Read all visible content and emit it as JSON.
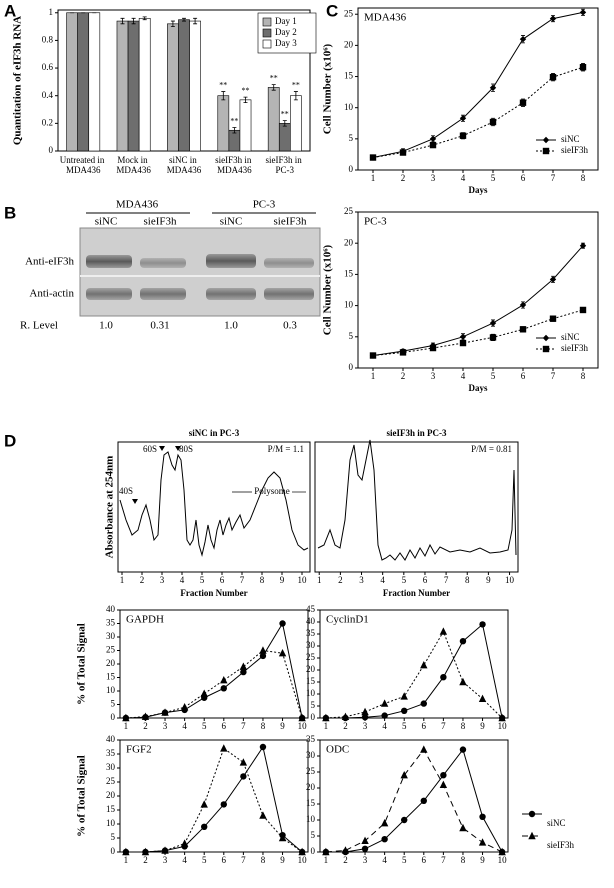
{
  "panels": [
    "A",
    "B",
    "C",
    "D"
  ],
  "blot": {
    "groups": [
      "MDA436",
      "PC-3"
    ],
    "lanes": [
      "siNC",
      "sieIF3h",
      "siNC",
      "sieIF3h"
    ],
    "rows": [
      "Anti-eIF3h",
      "Anti-actin"
    ],
    "level_label": "R. Level",
    "levels": [
      "1.0",
      "0.31",
      "1.0",
      "0.3"
    ]
  },
  "chart_data": [
    {
      "type": "bar",
      "ylabel": "Quantitation of eIF3h RNA",
      "categories": [
        "Untreated in MDA436",
        "Mock in MDA436",
        "siNC in MDA436",
        "sieIF3h in MDA436",
        "sieIF3h in PC-3"
      ],
      "series": [
        {
          "name": "Day 1",
          "color": "#b4b4b4",
          "values": [
            1,
            0.94,
            0.92,
            0.4,
            0.46
          ],
          "errors": [
            0,
            0.02,
            0.02,
            0.03,
            0.02
          ]
        },
        {
          "name": "Day 2",
          "color": "#6e6e6e",
          "values": [
            1,
            0.94,
            0.95,
            0.15,
            0.2
          ],
          "errors": [
            0,
            0.02,
            0.01,
            0.02,
            0.02
          ]
        },
        {
          "name": "Day 3",
          "color": "#ffffff",
          "values": [
            1,
            0.96,
            0.94,
            0.37,
            0.4
          ],
          "errors": [
            0,
            0.01,
            0.02,
            0.02,
            0.03
          ]
        }
      ],
      "annotation": "**",
      "ylim": [
        0,
        1.02
      ],
      "yticks": [
        0,
        0.2,
        0.4,
        0.6,
        0.8,
        1
      ],
      "legend": "upper right"
    },
    {
      "type": "line",
      "title": "MDA436",
      "xlabel": "Days",
      "ylabel": "Cell Number (x10⁶)",
      "x": [
        1,
        2,
        3,
        4,
        5,
        6,
        7,
        8
      ],
      "series": [
        {
          "name": "siNC",
          "color": "#000000",
          "line_style": "solid",
          "marker": "diamond",
          "values": [
            2,
            3,
            5,
            8.3,
            13.2,
            21,
            24.3,
            25.3
          ],
          "errors": [
            0.1,
            0.4,
            0.5,
            0.5,
            0.6,
            0.6,
            0.5,
            0.5
          ]
        },
        {
          "name": "sieIF3h",
          "color": "#000000",
          "line_style": "dotted",
          "marker": "square",
          "values": [
            2,
            2.8,
            4,
            5.5,
            7.7,
            10.8,
            14.9,
            16.5
          ],
          "errors": [
            0.1,
            0.4,
            0.4,
            0.5,
            0.6,
            0.6,
            0.6,
            0.6
          ]
        }
      ],
      "xlim": [
        0.5,
        8.5
      ],
      "xticks": [
        1,
        2,
        3,
        4,
        5,
        6,
        7,
        8
      ],
      "ylim": [
        0,
        26
      ],
      "yticks": [
        0,
        5,
        10,
        15,
        20,
        25
      ],
      "legend": "lower right"
    },
    {
      "type": "line",
      "title": "PC-3",
      "xlabel": "Days",
      "ylabel": "Cell Number (x10⁶)",
      "x": [
        1,
        2,
        3,
        4,
        5,
        6,
        7,
        8
      ],
      "series": [
        {
          "name": "siNC",
          "color": "#000000",
          "line_style": "solid",
          "marker": "diamond",
          "values": [
            2,
            2.7,
            3.6,
            5,
            7.2,
            10.1,
            14.2,
            19.6
          ],
          "errors": [
            0.1,
            0.3,
            0.4,
            0.5,
            0.5,
            0.5,
            0.5,
            0.4
          ]
        },
        {
          "name": "sieIF3h",
          "color": "#000000",
          "line_style": "dotted",
          "marker": "square",
          "values": [
            2,
            2.5,
            3.2,
            4,
            4.9,
            6.2,
            7.9,
            9.3
          ],
          "errors": [
            0.1,
            0.3,
            0.3,
            0.4,
            0.5,
            0.4,
            0.4,
            0.4
          ]
        }
      ],
      "xlim": [
        0.5,
        8.5
      ],
      "xticks": [
        1,
        2,
        3,
        4,
        5,
        6,
        7,
        8
      ],
      "ylim": [
        0,
        25
      ],
      "yticks": [
        0,
        5,
        10,
        15,
        20,
        25
      ],
      "legend": "lower right"
    },
    {
      "type": "profile",
      "title": "siNC in PC-3",
      "xlabel": "Fraction Number",
      "ylabel": "Absorbance at 254nm",
      "annotation": "P/M = 1.1",
      "peaks": [
        "40S",
        "60S",
        "80S"
      ],
      "region": "Polysome",
      "xlim": [
        0.8,
        10.4
      ],
      "xticks": [
        1,
        2,
        3,
        4,
        5,
        6,
        7,
        8,
        9,
        10
      ]
    },
    {
      "type": "profile",
      "title": "sieIF3h in PC-3",
      "xlabel": "Fraction Number",
      "annotation": "P/M = 0.81",
      "xlim": [
        0.8,
        10.4
      ],
      "xticks": [
        1,
        2,
        3,
        4,
        5,
        6,
        7,
        8,
        9,
        10
      ]
    },
    {
      "type": "line",
      "title": "GAPDH",
      "ylabel": "% of Total Signal",
      "x": [
        1,
        2,
        3,
        4,
        5,
        6,
        7,
        8,
        9,
        10
      ],
      "series": [
        {
          "name": "siNC",
          "color": "#000000",
          "line_style": "solid",
          "marker": "circle",
          "values": [
            0,
            0.3,
            2,
            3,
            7.5,
            11,
            17,
            23,
            35,
            0
          ]
        },
        {
          "name": "sieIF3h",
          "color": "#000000",
          "line_style": "dotted",
          "marker": "triangle",
          "values": [
            0,
            0.5,
            2,
            4,
            9,
            14,
            19,
            25,
            24,
            0
          ]
        }
      ],
      "xlim": [
        0.7,
        10.3
      ],
      "xticks": [
        1,
        2,
        3,
        4,
        5,
        6,
        7,
        8,
        9,
        10
      ],
      "ylim": [
        0,
        40
      ],
      "yticks": [
        0,
        5,
        10,
        15,
        20,
        25,
        30,
        35,
        40
      ]
    },
    {
      "type": "line",
      "title": "CyclinD1",
      "x": [
        1,
        2,
        3,
        4,
        5,
        6,
        7,
        8,
        9,
        10
      ],
      "series": [
        {
          "name": "siNC",
          "color": "#000000",
          "line_style": "solid",
          "marker": "circle",
          "values": [
            0,
            0,
            0.3,
            1,
            3,
            6,
            17,
            32,
            39,
            0
          ]
        },
        {
          "name": "sieIF3h",
          "color": "#000000",
          "line_style": "dotted",
          "marker": "triangle",
          "values": [
            0,
            0.5,
            2.5,
            6,
            9,
            22,
            36,
            15,
            8,
            0
          ]
        }
      ],
      "xlim": [
        0.7,
        10.3
      ],
      "xticks": [
        1,
        2,
        3,
        4,
        5,
        6,
        7,
        8,
        9,
        10
      ],
      "ylim": [
        0,
        45
      ],
      "yticks": [
        0,
        5,
        10,
        15,
        20,
        25,
        30,
        35,
        40,
        45
      ]
    },
    {
      "type": "line",
      "title": "FGF2",
      "ylabel": "% of Total Signal",
      "x": [
        1,
        2,
        3,
        4,
        5,
        6,
        7,
        8,
        9,
        10
      ],
      "series": [
        {
          "name": "siNC",
          "color": "#000000",
          "line_style": "solid",
          "marker": "circle",
          "values": [
            0,
            0,
            0.5,
            2,
            9,
            17,
            27,
            37.5,
            6,
            0
          ]
        },
        {
          "name": "sieIF3h",
          "color": "#000000",
          "line_style": "dotted",
          "marker": "triangle",
          "values": [
            0,
            0,
            0.5,
            3,
            17,
            37,
            32,
            13,
            5,
            0
          ]
        }
      ],
      "xlim": [
        0.7,
        10.3
      ],
      "xticks": [
        1,
        2,
        3,
        4,
        5,
        6,
        7,
        8,
        9,
        10
      ],
      "ylim": [
        0,
        40
      ],
      "yticks": [
        0,
        5,
        10,
        15,
        20,
        25,
        30,
        35,
        40
      ]
    },
    {
      "type": "line",
      "title": "ODC",
      "x": [
        1,
        2,
        3,
        4,
        5,
        6,
        7,
        8,
        9,
        10
      ],
      "series": [
        {
          "name": "siNC",
          "color": "#000000",
          "line_style": "solid",
          "marker": "circle",
          "values": [
            0,
            0,
            1,
            4,
            10,
            16,
            24,
            32,
            11,
            0
          ]
        },
        {
          "name": "sieIF3h",
          "color": "#000000",
          "line_style": "dashed",
          "marker": "triangle",
          "values": [
            0,
            0.5,
            3.5,
            9,
            24,
            32,
            21,
            7.5,
            3,
            0
          ]
        }
      ],
      "xlim": [
        0.7,
        10.3
      ],
      "xticks": [
        1,
        2,
        3,
        4,
        5,
        6,
        7,
        8,
        9,
        10
      ],
      "ylim": [
        0,
        35
      ],
      "yticks": [
        0,
        5,
        10,
        15,
        20,
        25,
        30,
        35
      ],
      "legend": "outside right"
    }
  ]
}
